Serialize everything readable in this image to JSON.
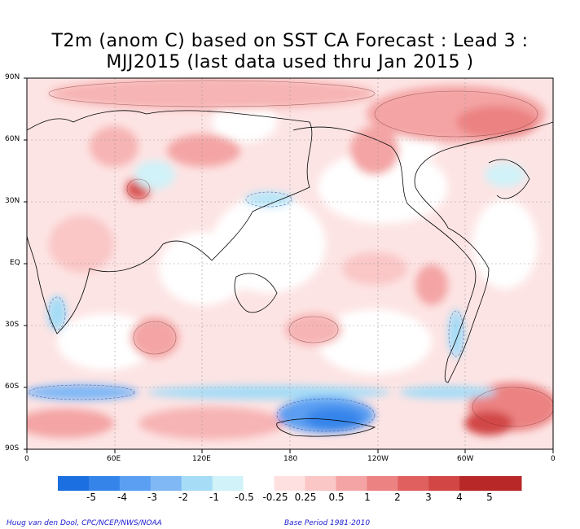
{
  "title": {
    "line1": "T2m (anom C) based on SST CA Forecast : Lead 3 :",
    "line2": "MJJ2015 (last data used thru Jan 2015 )"
  },
  "axes": {
    "lat_labels": [
      "90N",
      "60N",
      "30N",
      "EQ",
      "30S",
      "60S",
      "90S"
    ],
    "lon_labels": [
      "0",
      "60E",
      "120E",
      "180",
      "120W",
      "60W",
      "0"
    ]
  },
  "colorbar": {
    "labels": [
      "-5",
      "-4",
      "-3",
      "-2",
      "-1",
      "-0.5",
      "-0.25",
      "0.25",
      "0.5",
      "1",
      "2",
      "3",
      "4",
      "5"
    ],
    "colors": [
      "#1c6fe0",
      "#3584ea",
      "#5b9ff2",
      "#80b8f6",
      "#a6dcf6",
      "#d0f2f8",
      "#ffffff",
      "#ffe0e0",
      "#fac6c6",
      "#f4a4a4",
      "#ec8282",
      "#e06060",
      "#d24646",
      "#b82828"
    ]
  },
  "footer": {
    "credit": "Huug van den Dool, CPC/NCEP/NWS/NOAA",
    "base_period": "Base Period 1981-2010"
  }
}
